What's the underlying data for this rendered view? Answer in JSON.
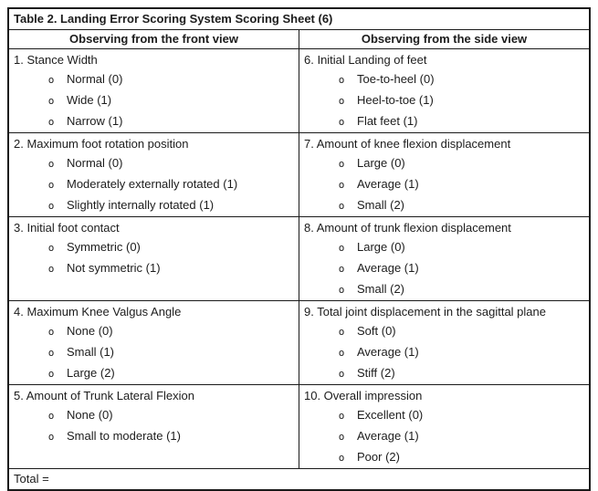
{
  "title": "Table 2. Landing Error Scoring System Scoring Sheet (6)",
  "bullet_glyph": "o",
  "total_label": "Total =",
  "columns": {
    "front": {
      "header": "Observing from the front view"
    },
    "side": {
      "header": "Observing from the side view"
    }
  },
  "rows": [
    {
      "left": {
        "heading": "1. Stance Width",
        "options": [
          "Normal (0)",
          "Wide (1)",
          "Narrow (1)"
        ]
      },
      "right": {
        "heading": "6.  Initial Landing of feet",
        "options": [
          "Toe-to-heel (0)",
          "Heel-to-toe (1)",
          "Flat feet (1)"
        ]
      }
    },
    {
      "left": {
        "heading": "2. Maximum foot rotation position",
        "options": [
          "Normal (0)",
          "Moderately externally rotated (1)",
          "Slightly internally rotated (1)"
        ]
      },
      "right": {
        "heading": "7. Amount of knee flexion displacement",
        "options": [
          "Large (0)",
          "Average (1)",
          "Small (2)"
        ]
      }
    },
    {
      "left": {
        "heading": "3. Initial foot contact",
        "options": [
          "Symmetric (0)",
          "Not symmetric (1)"
        ]
      },
      "right": {
        "heading": "8. Amount of trunk flexion displacement",
        "options": [
          "Large (0)",
          "Average (1)",
          "Small (2)"
        ]
      }
    },
    {
      "left": {
        "heading": "4. Maximum Knee Valgus Angle",
        "options": [
          "None (0)",
          "Small (1)",
          "Large (2)"
        ]
      },
      "right": {
        "heading": "9. Total joint displacement in the sagittal plane",
        "options": [
          "Soft (0)",
          "Average (1)",
          "Stiff (2)"
        ]
      }
    },
    {
      "left": {
        "heading": "5.  Amount of Trunk Lateral Flexion",
        "options": [
          "None (0)",
          "Small to moderate (1)"
        ]
      },
      "right": {
        "heading": "10. Overall impression",
        "options": [
          "Excellent (0)",
          "Average (1)",
          "Poor (2)"
        ]
      }
    }
  ]
}
